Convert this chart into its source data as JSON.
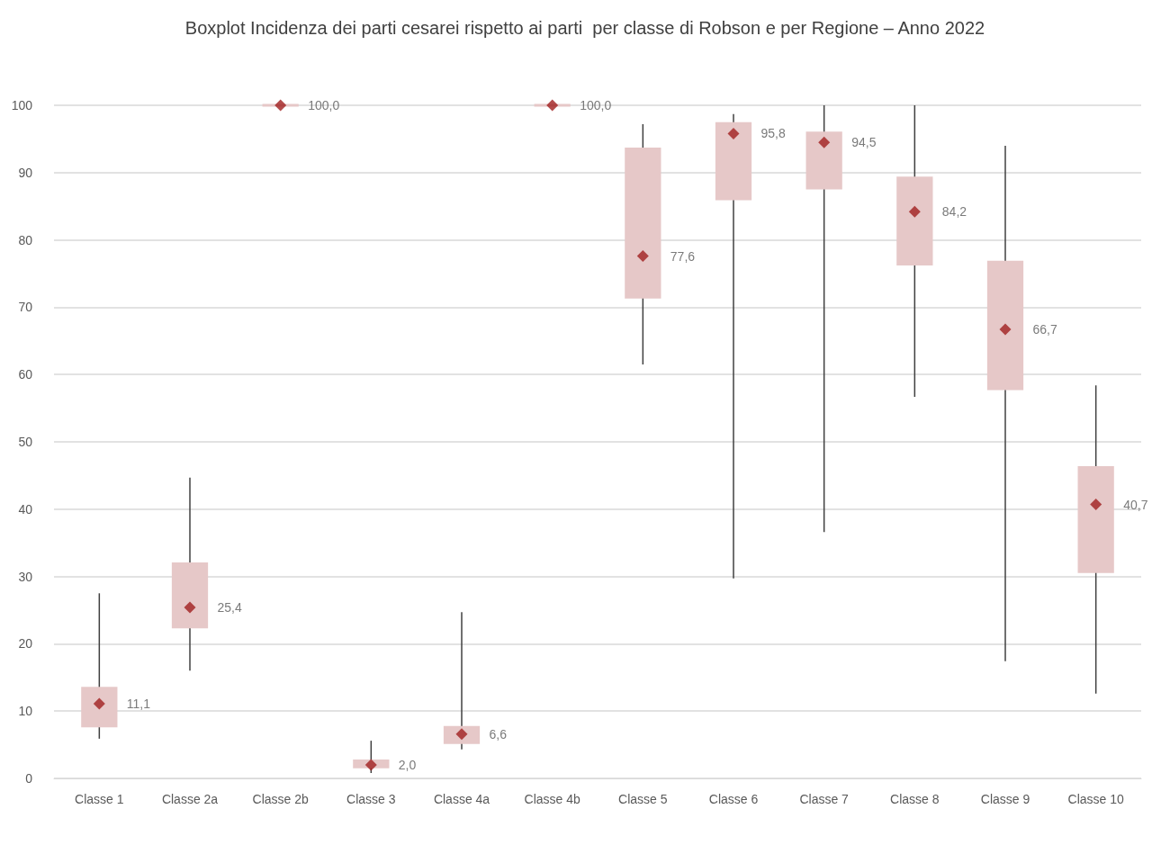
{
  "chart_data": {
    "type": "box",
    "title": "Boxplot Incidenza dei parti cesarei rispetto ai parti  per classe di Robson e per Regione – Anno 2022",
    "categories": [
      "Classe 1",
      "Classe 2a",
      "Classe 2b",
      "Classe 3",
      "Classe 4a",
      "Classe 4b",
      "Classe 5",
      "Classe 6",
      "Classe 7",
      "Classe 8",
      "Classe 9",
      "Classe 10"
    ],
    "ylim": [
      0,
      100
    ],
    "yticks": [
      0,
      10,
      20,
      30,
      40,
      50,
      60,
      70,
      80,
      90,
      100
    ],
    "grid": "y",
    "series": [
      {
        "color": "#e6c8c8",
        "boxes": [
          {
            "low": 5.9,
            "q1": 7.6,
            "q3": 13.6,
            "high": 27.5
          },
          {
            "low": 16.0,
            "q1": 22.3,
            "q3": 32.1,
            "high": 44.7
          },
          {
            "low": 100,
            "q1": 100,
            "q3": 100,
            "high": 100
          },
          {
            "low": 0.8,
            "q1": 1.5,
            "q3": 2.8,
            "high": 5.6
          },
          {
            "low": 4.3,
            "q1": 5.1,
            "q3": 7.8,
            "high": 24.7
          },
          {
            "low": 100,
            "q1": 100,
            "q3": 100,
            "high": 100
          },
          {
            "low": 61.5,
            "q1": 71.3,
            "q3": 93.7,
            "high": 97.2
          },
          {
            "low": 29.7,
            "q1": 85.9,
            "q3": 97.5,
            "high": 98.7
          },
          {
            "low": 36.6,
            "q1": 87.5,
            "q3": 96.1,
            "high": 100
          },
          {
            "low": 56.7,
            "q1": 76.2,
            "q3": 89.4,
            "high": 100
          },
          {
            "low": 17.4,
            "q1": 57.7,
            "q3": 76.9,
            "high": 94.0
          },
          {
            "low": 12.6,
            "q1": 30.5,
            "q3": 46.4,
            "high": 58.4
          }
        ]
      },
      {
        "type": "scatter",
        "color": "#a01f1f",
        "marker": "diamond",
        "x": [
          "Classe 1",
          "Classe 2a",
          "Classe 2b",
          "Classe 3",
          "Classe 4a",
          "Classe 4b",
          "Classe 5",
          "Classe 6",
          "Classe 7",
          "Classe 8",
          "Classe 9",
          "Classe 10"
        ],
        "values": [
          11.1,
          25.4,
          100,
          2.0,
          6.6,
          100,
          77.6,
          95.8,
          94.5,
          84.2,
          66.7,
          40.7
        ],
        "value_labels": [
          "11,1",
          "25,4",
          "100,0",
          "2,0",
          "6,6",
          "100,0",
          "77,6",
          "95,8",
          "94,5",
          "84,2",
          "66,7",
          "40,7"
        ]
      }
    ]
  }
}
